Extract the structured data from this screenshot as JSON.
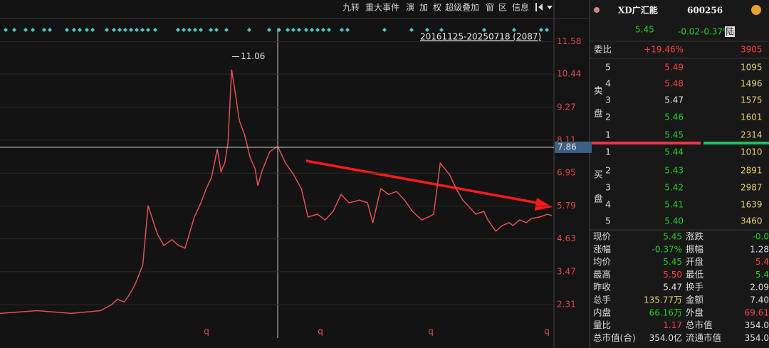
{
  "toolbar": [
    "九转",
    "重大事件",
    "演",
    "加",
    "权",
    "超级叠加",
    "窗",
    "区",
    "信息"
  ],
  "chart_data": {
    "type": "line",
    "color": "#e05050",
    "x": [
      0,
      140,
      270,
      380,
      420,
      445,
      470,
      485,
      510,
      540,
      560,
      595,
      620,
      650,
      675,
      700,
      735,
      760,
      780,
      800,
      822,
      836,
      850,
      862,
      876,
      891,
      905,
      925,
      946,
      965,
      975,
      990,
      1020,
      1050,
      1080,
      1110,
      1140,
      1165,
      1200,
      1230,
      1260,
      1290,
      1320,
      1360,
      1390,
      1410,
      1440,
      1470,
      1500,
      1530,
      1560,
      1595,
      1620,
      1640,
      1665,
      1700,
      1725,
      1750,
      1780,
      1800,
      1830,
      1845,
      1875,
      1900,
      1925,
      1940,
      1965,
      1990,
      2010,
      2040,
      2070,
      2087
    ],
    "values": [
      2.0,
      2.1,
      2.0,
      2.1,
      2.3,
      2.5,
      2.4,
      2.6,
      3.0,
      3.7,
      5.8,
      4.8,
      4.4,
      4.6,
      4.4,
      4.3,
      5.4,
      5.9,
      6.4,
      6.8,
      7.8,
      7.0,
      7.3,
      8.0,
      10.6,
      9.7,
      8.8,
      8.3,
      7.5,
      7.1,
      6.5,
      7.0,
      7.7,
      7.9,
      7.3,
      6.9,
      6.4,
      5.4,
      5.5,
      5.3,
      5.6,
      6.2,
      5.9,
      6.0,
      5.9,
      5.2,
      6.4,
      6.2,
      6.3,
      6.0,
      5.6,
      5.3,
      5.4,
      5.5,
      7.3,
      6.9,
      6.4,
      6.0,
      5.7,
      5.5,
      5.6,
      5.3,
      4.9,
      5.1,
      5.2,
      5.1,
      5.3,
      5.2,
      5.35,
      5.4,
      5.5,
      5.45
    ],
    "xlim": [
      0,
      2087
    ],
    "ylim": [
      1.71,
      12.05
    ],
    "yticks": [
      11.58,
      10.44,
      9.27,
      8.11,
      6.95,
      5.79,
      4.63,
      3.47,
      2.31
    ],
    "grid": true,
    "range_label": "20161125-20250718 (2087)",
    "peak": 11.06,
    "crosshair": 7.86,
    "markers": [
      "q",
      "q",
      "q",
      "q"
    ]
  },
  "quote": {
    "name": "XD广汇能",
    "code": "600256",
    "price": "5.45",
    "change": "-0.02",
    "change_pct": "-0.37%",
    "badge": "陆",
    "ratio_label": "委比",
    "ratio": "+19.46%",
    "ratio_diff": "3905",
    "sell_side": [
      "卖",
      "盘"
    ],
    "buy_side": [
      "买",
      "盘"
    ],
    "sell": [
      [
        "5",
        "5.49",
        "1095"
      ],
      [
        "4",
        "5.48",
        "1496"
      ],
      [
        "3",
        "5.47",
        "1575"
      ],
      [
        "2",
        "5.46",
        "1601"
      ],
      [
        "1",
        "5.45",
        "2314"
      ]
    ],
    "buy": [
      [
        "1",
        "5.44",
        "1010"
      ],
      [
        "2",
        "5.43",
        "2891"
      ],
      [
        "3",
        "5.42",
        "2987"
      ],
      [
        "4",
        "5.41",
        "1639"
      ],
      [
        "5",
        "5.40",
        "3460"
      ]
    ],
    "stats": [
      [
        "现价",
        "5.45",
        "涨跌",
        "-0.0"
      ],
      [
        "涨幅",
        "-0.37%",
        "振幅",
        "1.28"
      ],
      [
        "均价",
        "5.45",
        "开盘",
        "5.4"
      ],
      [
        "最高",
        "5.50",
        "最低",
        "5.4"
      ],
      [
        "昨收",
        "5.47",
        "换手",
        "2.09"
      ],
      [
        "总手",
        "135.77万",
        "金额",
        "7.40"
      ],
      [
        "内盘",
        "66.16万",
        "外盘",
        "69.61"
      ],
      [
        "量比",
        "1.17",
        "总市值",
        "354.0"
      ],
      [
        "总市值(合)",
        "354.0亿",
        "流通市值",
        "354.0"
      ]
    ]
  }
}
